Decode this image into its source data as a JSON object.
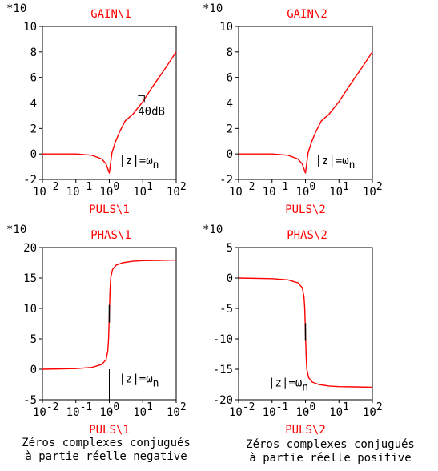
{
  "colors": {
    "curve": "#ff0000",
    "title": "#ff0000",
    "axis": "#000000"
  },
  "captions": {
    "left_line1": "Zéros complexes conjugués",
    "left_line2": "à partie réelle negative",
    "right_line1": "Zéros complexes conjugués",
    "right_line2": "à partie réelle positive"
  },
  "chart_data": [
    {
      "type": "line",
      "title": "GAIN\\1",
      "xlabel": "PULS\\1",
      "y_multiplier": "*10",
      "x_scale": "log",
      "xlim": [
        0.01,
        100
      ],
      "ylim": [
        -2,
        10
      ],
      "x_tick_exponents": [
        "-2",
        "-1",
        "0",
        "1",
        "2"
      ],
      "y_ticks": [
        "-2",
        "0",
        "2",
        "4",
        "6",
        "8",
        "10"
      ],
      "series": [
        {
          "x": [
            0.01,
            0.1,
            0.3,
            0.6,
            0.8,
            1.0,
            1.2,
            1.5,
            2,
            3,
            5,
            10,
            20,
            50,
            100
          ],
          "y": [
            0,
            0,
            -0.1,
            -0.4,
            -0.8,
            -1.5,
            0.1,
            0.9,
            1.7,
            2.6,
            3.1,
            4.1,
            5.3,
            6.8,
            8.0
          ]
        }
      ],
      "annotations": [
        {
          "text": "40dB",
          "x": 10,
          "y": 4.2
        },
        {
          "text": "|z|=ω",
          "sub": "n",
          "x": 1.0,
          "y": -0.5
        }
      ]
    },
    {
      "type": "line",
      "title": "GAIN\\2",
      "xlabel": "PULS\\2",
      "y_multiplier": "*10",
      "x_scale": "log",
      "xlim": [
        0.01,
        100
      ],
      "ylim": [
        -2,
        10
      ],
      "x_tick_exponents": [
        "-2",
        "-1",
        "0",
        "1",
        "2"
      ],
      "y_ticks": [
        "-2",
        "0",
        "2",
        "4",
        "6",
        "8",
        "10"
      ],
      "series": [
        {
          "x": [
            0.01,
            0.1,
            0.3,
            0.6,
            0.8,
            1.0,
            1.2,
            1.5,
            2,
            3,
            5,
            10,
            20,
            50,
            100
          ],
          "y": [
            0,
            0,
            -0.1,
            -0.4,
            -0.8,
            -1.5,
            0.1,
            0.9,
            1.7,
            2.6,
            3.1,
            4.1,
            5.3,
            6.8,
            8.0
          ]
        }
      ],
      "annotations": [
        {
          "text": "|z|=ω",
          "sub": "n",
          "x": 1.0,
          "y": -0.5
        }
      ]
    },
    {
      "type": "line",
      "title": "PHAS\\1",
      "xlabel": "PULS\\1",
      "y_multiplier": "*10",
      "x_scale": "log",
      "xlim": [
        0.01,
        100
      ],
      "ylim": [
        -5,
        20
      ],
      "x_tick_exponents": [
        "-2",
        "-1",
        "0",
        "1",
        "2"
      ],
      "y_ticks": [
        "-5",
        "0",
        "5",
        "10",
        "15",
        "20"
      ],
      "series": [
        {
          "x": [
            0.01,
            0.1,
            0.3,
            0.6,
            0.8,
            0.9,
            0.95,
            1.0,
            1.05,
            1.1,
            1.25,
            1.6,
            2.5,
            5,
            10,
            30,
            100
          ],
          "y": [
            0,
            0.1,
            0.3,
            0.8,
            1.6,
            3.0,
            5.0,
            9.0,
            13.0,
            15.0,
            16.4,
            17.1,
            17.5,
            17.75,
            17.85,
            17.9,
            17.95
          ]
        }
      ],
      "annotations": [
        {
          "text": "|z|=ω",
          "sub": "n",
          "x": 1.0,
          "y": -1.5
        }
      ]
    },
    {
      "type": "line",
      "title": "PHAS\\2",
      "xlabel": "PULS\\2",
      "y_multiplier": "*10",
      "x_scale": "log",
      "xlim": [
        0.01,
        100
      ],
      "ylim": [
        -20,
        5
      ],
      "x_tick_exponents": [
        "-2",
        "-1",
        "0",
        "1",
        "2"
      ],
      "y_ticks": [
        "-20",
        "-15",
        "-10",
        "-5",
        "0",
        "5"
      ],
      "series": [
        {
          "x": [
            0.01,
            0.1,
            0.3,
            0.6,
            0.8,
            0.9,
            0.95,
            1.0,
            1.05,
            1.1,
            1.25,
            1.6,
            2.5,
            5,
            10,
            30,
            100
          ],
          "y": [
            0,
            -0.1,
            -0.3,
            -0.8,
            -1.6,
            -3.0,
            -5.0,
            -9.0,
            -13.0,
            -15.0,
            -16.4,
            -17.1,
            -17.5,
            -17.75,
            -17.85,
            -17.9,
            -17.95
          ]
        }
      ],
      "annotations": [
        {
          "text": "|z|=ω",
          "sub": "n",
          "x": 0.04,
          "y": -17.2
        }
      ]
    }
  ]
}
